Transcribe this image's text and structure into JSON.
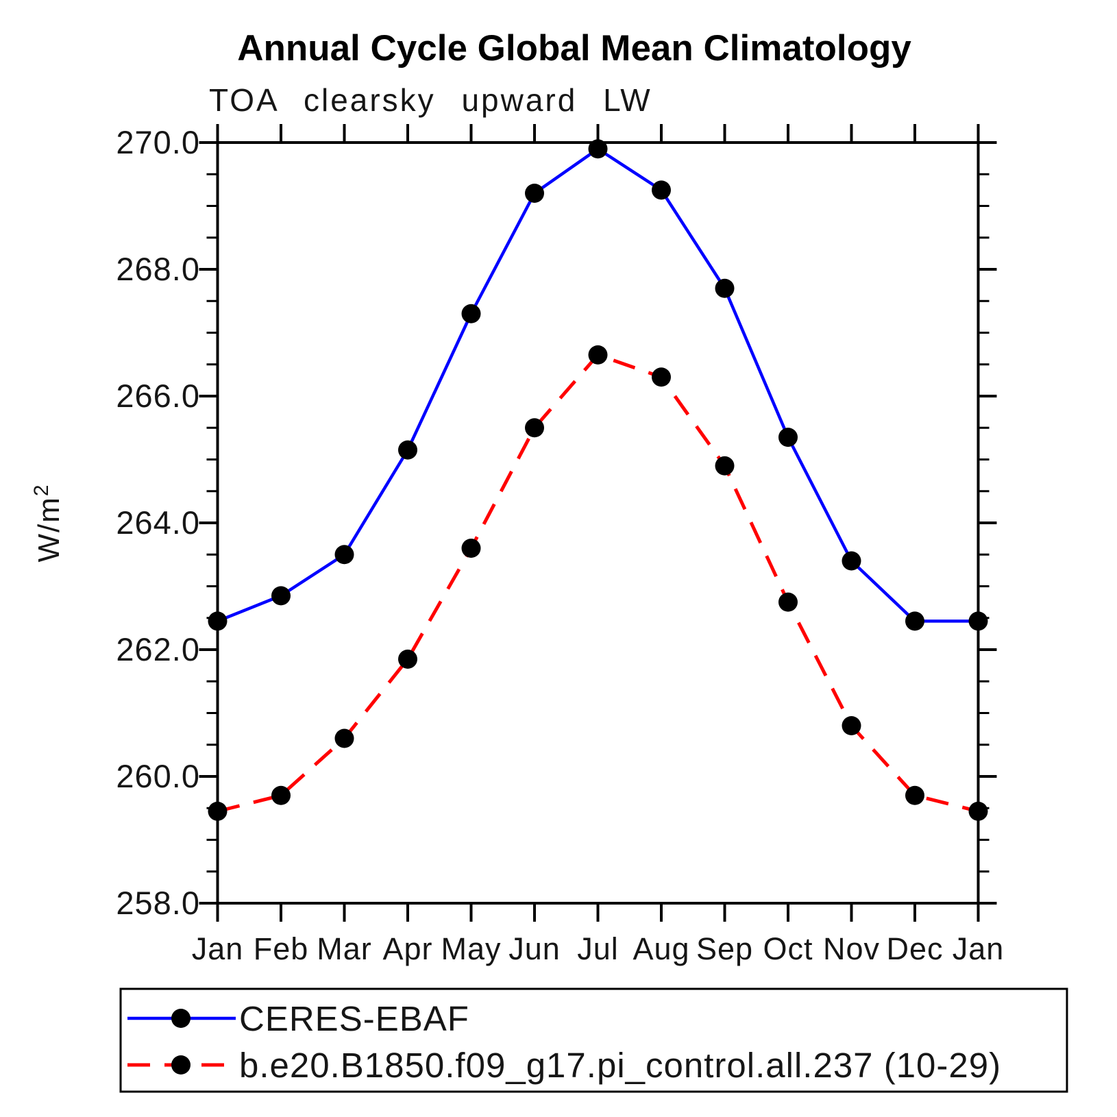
{
  "header": {
    "title": "Annual Cycle Global Mean Climatology",
    "subtitle": "TOA clearsky upward LW"
  },
  "axes": {
    "ylabel": "W/m²",
    "ylabel_base": "W/m",
    "ylabel_sup": "2",
    "y_tick_labels": [
      "270.0",
      "268.0",
      "266.0",
      "264.0",
      "262.0",
      "260.0",
      "258.0"
    ],
    "x_tick_labels": [
      "Jan",
      "Feb",
      "Mar",
      "Apr",
      "May",
      "Jun",
      "Jul",
      "Aug",
      "Sep",
      "Oct",
      "Nov",
      "Dec",
      "Jan"
    ]
  },
  "legend": {
    "entries": [
      {
        "label": "CERES-EBAF",
        "color": "#0000ff",
        "line_style": "solid",
        "marker": "filled-circle",
        "marker_color": "#000000"
      },
      {
        "label": "b.e20.B1850.f09_g17.pi_control.all.237 (10-29)",
        "color": "#ff0000",
        "line_style": "dashed",
        "marker": "filled-circle",
        "marker_color": "#000000"
      }
    ]
  },
  "colors": {
    "observation_line": "#0000ff",
    "model_line": "#ff0000",
    "marker": "#000000",
    "axis": "#000000",
    "background": "#ffffff"
  },
  "chart_data": {
    "type": "line",
    "title": "Annual Cycle Global Mean Climatology",
    "subtitle": "TOA clearsky upward LW",
    "xlabel": "",
    "ylabel": "W/m²",
    "x": [
      "Jan",
      "Feb",
      "Mar",
      "Apr",
      "May",
      "Jun",
      "Jul",
      "Aug",
      "Sep",
      "Oct",
      "Nov",
      "Dec",
      "Jan"
    ],
    "ylim": [
      258.0,
      270.0
    ],
    "ytick_major_interval": 2.0,
    "ytick_minor_interval": 0.5,
    "grid": false,
    "marker": "filled-circle",
    "legend_position": "bottom-left-box",
    "series": [
      {
        "name": "CERES-EBAF",
        "color": "#0000ff",
        "style": "solid",
        "values": [
          262.45,
          262.85,
          263.5,
          265.15,
          267.3,
          269.2,
          269.9,
          269.25,
          267.7,
          265.35,
          263.4,
          262.45,
          262.45
        ]
      },
      {
        "name": "b.e20.B1850.f09_g17.pi_control.all.237 (10-29)",
        "color": "#ff0000",
        "style": "dashed",
        "values": [
          259.45,
          259.7,
          260.6,
          261.85,
          263.6,
          265.5,
          266.65,
          266.3,
          264.9,
          262.75,
          260.8,
          259.7,
          259.45
        ]
      }
    ]
  }
}
